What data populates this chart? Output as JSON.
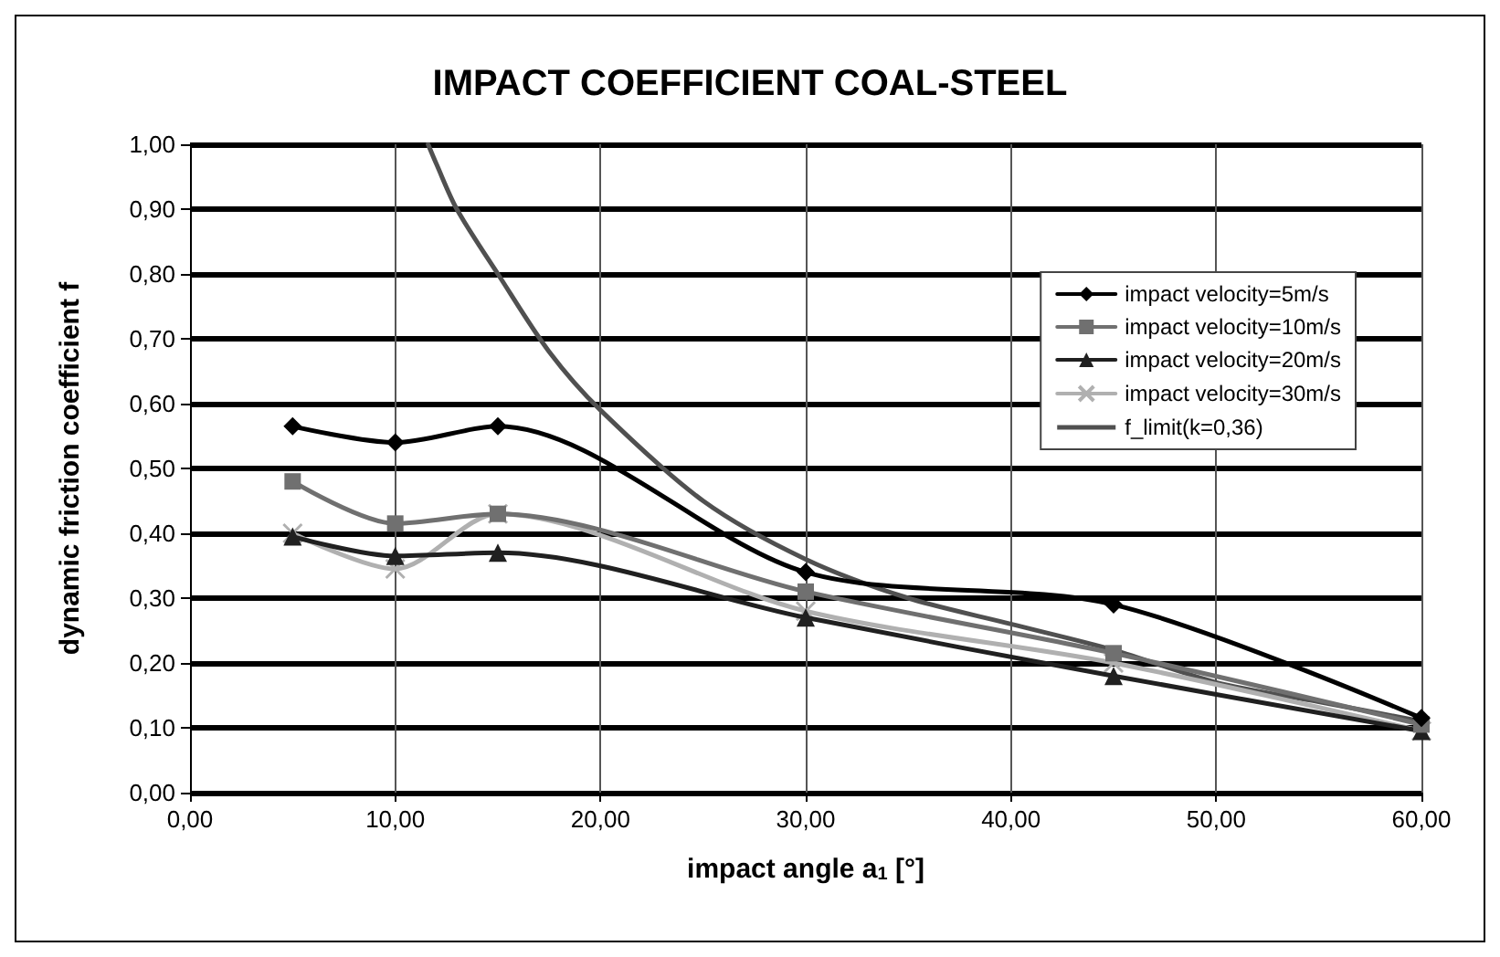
{
  "chart_data": {
    "type": "line",
    "title": "IMPACT COEFFICIENT COAL-STEEL",
    "xlabel": "impact angle a$_{1}$ [°]",
    "ylabel": "dynamic friction coefficient f",
    "xlim": [
      0,
      60
    ],
    "ylim": [
      0,
      1
    ],
    "xticks": [
      {
        "value": 0,
        "label": "0,00"
      },
      {
        "value": 10,
        "label": "10,00"
      },
      {
        "value": 20,
        "label": "20,00"
      },
      {
        "value": 30,
        "label": "30,00"
      },
      {
        "value": 40,
        "label": "40,00"
      },
      {
        "value": 50,
        "label": "50,00"
      },
      {
        "value": 60,
        "label": "60,00"
      }
    ],
    "yticks": [
      {
        "value": 0,
        "label": "0,00"
      },
      {
        "value": 0.1,
        "label": "0,10"
      },
      {
        "value": 0.2,
        "label": "0,20"
      },
      {
        "value": 0.3,
        "label": "0,30"
      },
      {
        "value": 0.4,
        "label": "0,40"
      },
      {
        "value": 0.5,
        "label": "0,50"
      },
      {
        "value": 0.6,
        "label": "0,60"
      },
      {
        "value": 0.7,
        "label": "0,70"
      },
      {
        "value": 0.8,
        "label": "0,80"
      },
      {
        "value": 0.9,
        "label": "0,90"
      },
      {
        "value": 1,
        "label": "1,00"
      }
    ],
    "grid": true,
    "legend": "right",
    "series": [
      {
        "name": "impact velocity=5m/s",
        "color": "#000000",
        "marker": "diamond",
        "x": [
          5,
          10,
          15,
          30,
          45,
          60
        ],
        "values": [
          0.565,
          0.54,
          0.565,
          0.34,
          0.29,
          0.115
        ]
      },
      {
        "name": "impact velocity=10m/s",
        "color": "#707070",
        "marker": "square",
        "x": [
          5,
          10,
          15,
          30,
          45,
          60
        ],
        "values": [
          0.48,
          0.415,
          0.43,
          0.31,
          0.215,
          0.105
        ]
      },
      {
        "name": "impact velocity=20m/s",
        "color": "#202020",
        "marker": "triangle",
        "x": [
          5,
          10,
          15,
          30,
          45,
          60
        ],
        "values": [
          0.395,
          0.365,
          0.37,
          0.27,
          0.18,
          0.095
        ]
      },
      {
        "name": "impact velocity=30m/s",
        "color": "#b0b0b0",
        "marker": "cross",
        "x": [
          5,
          10,
          15,
          30,
          45,
          60
        ],
        "values": [
          0.4,
          0.345,
          0.43,
          0.28,
          0.2,
          0.095
        ]
      },
      {
        "name": "f_limit(k=0,36)",
        "color": "#505050",
        "marker": "none",
        "x": [
          11.6,
          12,
          13,
          15,
          17.5,
          20,
          25,
          30,
          35,
          40,
          45,
          50,
          55,
          60
        ],
        "values": [
          1.0,
          0.97,
          0.9,
          0.8,
          0.68,
          0.59,
          0.45,
          0.36,
          0.3,
          0.26,
          0.22,
          0.17,
          0.14,
          0.11
        ]
      }
    ]
  }
}
